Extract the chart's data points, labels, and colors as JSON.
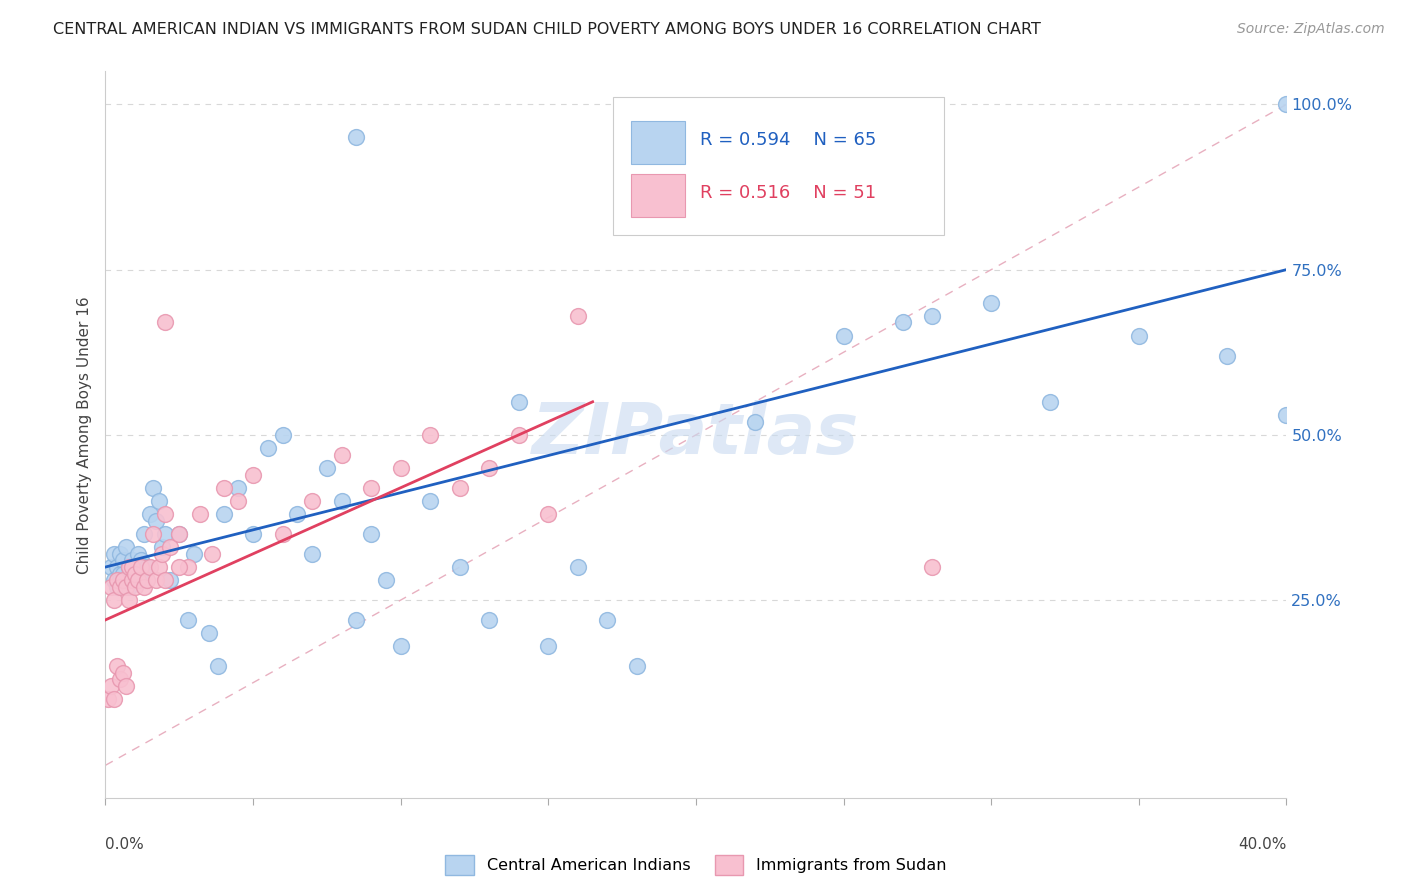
{
  "title": "CENTRAL AMERICAN INDIAN VS IMMIGRANTS FROM SUDAN CHILD POVERTY AMONG BOYS UNDER 16 CORRELATION CHART",
  "source": "Source: ZipAtlas.com",
  "ylabel": "Child Poverty Among Boys Under 16",
  "legend_label1": "Central American Indians",
  "legend_label2": "Immigrants from Sudan",
  "blue_fill": "#b8d4f0",
  "blue_edge": "#90b8e0",
  "blue_line": "#2060c0",
  "pink_fill": "#f8c0d0",
  "pink_edge": "#e898b0",
  "pink_line": "#e04060",
  "diag_color": "#e0b0c0",
  "grid_color": "#d8d8d8",
  "right_label_color": "#3070c0",
  "xmin": 0.0,
  "xmax": 0.4,
  "ymin": -0.05,
  "ymax": 1.05,
  "blue_trend": [
    0.0,
    0.3,
    0.4,
    0.75
  ],
  "pink_trend": [
    0.0,
    0.22,
    0.165,
    0.55
  ],
  "diag_line": [
    0.0,
    0.0,
    0.4,
    1.0
  ],
  "yticks": [
    0.0,
    0.25,
    0.5,
    0.75,
    1.0
  ],
  "ytick_labels_right": [
    "",
    "25.0%",
    "50.0%",
    "75.0%",
    "100.0%"
  ],
  "watermark": "ZIPatlas",
  "watermark_color": "#c8daf0"
}
